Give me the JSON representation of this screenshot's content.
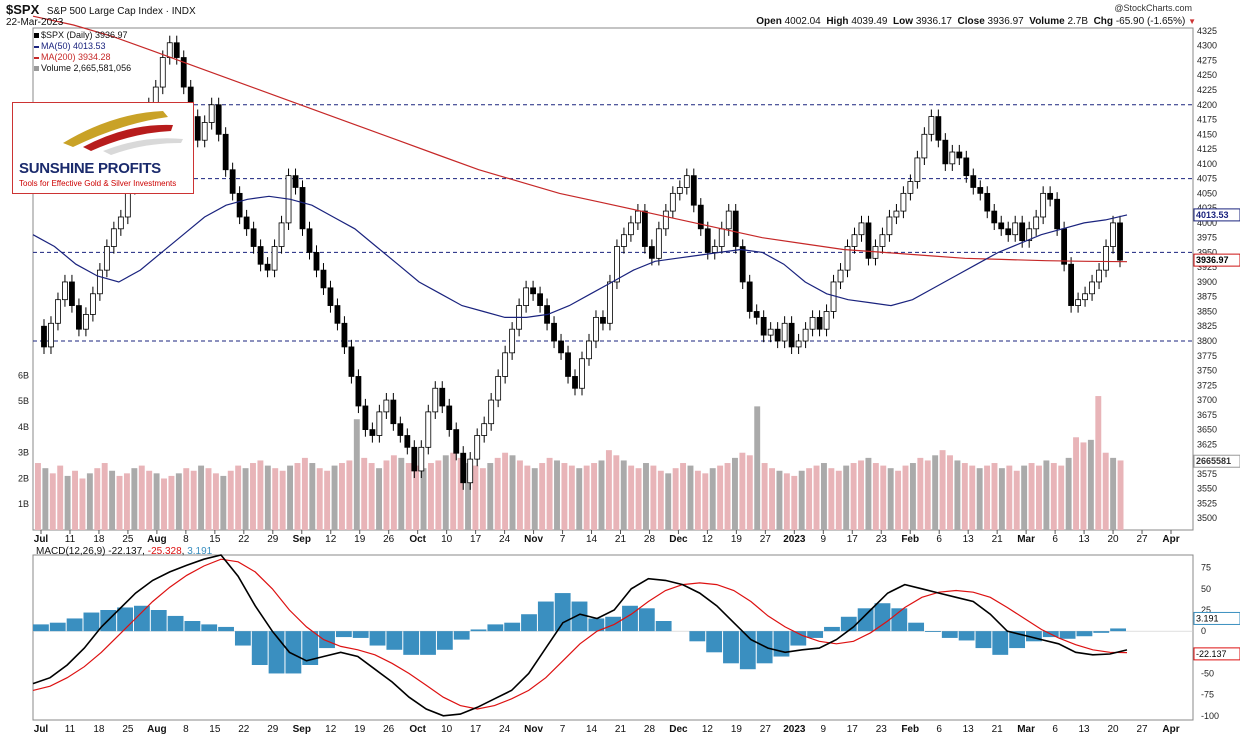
{
  "header": {
    "symbol": "$SPX",
    "name": "S&P 500 Large Cap Index",
    "exchange": "INDX",
    "date": "22-Mar-2023",
    "source": "@StockCharts.com",
    "open_label": "Open",
    "open": "4002.04",
    "high_label": "High",
    "high": "4039.49",
    "low_label": "Low",
    "low": "3936.17",
    "close_label": "Close",
    "close": "3936.97",
    "volume_label": "Volume",
    "volume": "2.7B",
    "chg_label": "Chg",
    "chg": "-65.90 (-1.65%)"
  },
  "legend": {
    "price": "$SPX (Daily) 3936.97",
    "ma50": "MA(50) 4013.53",
    "ma200": "MA(200) 3934.28",
    "volume": "Volume 2,665,581,056",
    "macd_label": "MACD(12,26,9)",
    "macd_value": "-22.137",
    "signal_value": "-25.328",
    "hist_value": "3.191"
  },
  "logo": {
    "name": "SUNSHINE PROFITS",
    "tagline": "Tools for Effective Gold & Silver Investments"
  },
  "colors": {
    "ma50": "#1a237e",
    "ma200": "#c62828",
    "vol_up": "#e8b4b8",
    "vol_down": "#aaaaaa",
    "hist": "#3a8fc0",
    "macd": "#000000",
    "signal": "#dd1111",
    "level": "#1a237e",
    "badge_close": "#cc1111"
  },
  "chart_data": {
    "type": "candlestick",
    "price_axis": {
      "min": 3480,
      "max": 4330,
      "ticks": [
        3500,
        3525,
        3550,
        3575,
        3600,
        3625,
        3650,
        3675,
        3700,
        3725,
        3750,
        3775,
        3800,
        3825,
        3850,
        3875,
        3900,
        3925,
        3950,
        3975,
        4000,
        4025,
        4050,
        4075,
        4100,
        4125,
        4150,
        4175,
        4200,
        4225,
        4250,
        4275,
        4300,
        4325
      ]
    },
    "volume_axis": {
      "ticks": [
        "1B",
        "2B",
        "3B",
        "4B",
        "5B",
        "6B"
      ]
    },
    "x_ticks": [
      "Jul",
      "11",
      "18",
      "25",
      "Aug",
      "8",
      "15",
      "22",
      "29",
      "Sep",
      "12",
      "19",
      "26",
      "Oct",
      "10",
      "17",
      "24",
      "Nov",
      "7",
      "14",
      "21",
      "28",
      "Dec",
      "12",
      "19",
      "27",
      "2023",
      "9",
      "17",
      "23",
      "Feb",
      "6",
      "13",
      "21",
      "Mar",
      "6",
      "13",
      "20",
      "27",
      "Apr"
    ],
    "x_ticks_bold": [
      "Jul",
      "Aug",
      "Sep",
      "Oct",
      "Nov",
      "Dec",
      "2023",
      "Feb",
      "Mar",
      "Apr"
    ],
    "level_lines": [
      4200,
      4075,
      3950,
      3800
    ],
    "price_badges": {
      "ma50": "4013.53",
      "close": "3936.97",
      "volume": "2665581"
    },
    "price_path": [
      3825,
      3790,
      3830,
      3870,
      3900,
      3860,
      3820,
      3845,
      3880,
      3920,
      3960,
      3990,
      4010,
      4060,
      4120,
      4150,
      4200,
      4230,
      4280,
      4305,
      4280,
      4230,
      4180,
      4140,
      4170,
      4200,
      4150,
      4090,
      4050,
      4010,
      3990,
      3960,
      3930,
      3920,
      3960,
      4000,
      4080,
      4060,
      3990,
      3950,
      3920,
      3890,
      3860,
      3830,
      3790,
      3740,
      3690,
      3650,
      3640,
      3680,
      3700,
      3660,
      3640,
      3620,
      3580,
      3620,
      3680,
      3720,
      3690,
      3650,
      3610,
      3560,
      3600,
      3640,
      3660,
      3700,
      3740,
      3780,
      3820,
      3860,
      3890,
      3880,
      3860,
      3830,
      3800,
      3780,
      3740,
      3720,
      3770,
      3800,
      3840,
      3830,
      3900,
      3960,
      3980,
      4000,
      4020,
      3960,
      3940,
      3990,
      4020,
      4050,
      4060,
      4080,
      4030,
      3990,
      3950,
      3960,
      3990,
      4020,
      3960,
      3900,
      3850,
      3840,
      3810,
      3820,
      3800,
      3830,
      3790,
      3800,
      3820,
      3840,
      3820,
      3850,
      3900,
      3920,
      3960,
      3980,
      4000,
      3940,
      3960,
      3980,
      4010,
      4020,
      4050,
      4070,
      4110,
      4150,
      4180,
      4140,
      4100,
      4120,
      4110,
      4080,
      4060,
      4050,
      4020,
      4000,
      3990,
      3980,
      4000,
      3970,
      3990,
      4010,
      4050,
      4040,
      3990,
      3930,
      3860,
      3870,
      3880,
      3900,
      3920,
      3960,
      4000,
      3936.97
    ],
    "ma50_path": [
      3980,
      3960,
      3930,
      3910,
      3900,
      3920,
      3950,
      3980,
      4010,
      4030,
      4040,
      4045,
      4040,
      4030,
      4010,
      3990,
      3960,
      3930,
      3900,
      3880,
      3860,
      3850,
      3840,
      3840,
      3845,
      3860,
      3880,
      3900,
      3920,
      3935,
      3940,
      3945,
      3950,
      3955,
      3950,
      3930,
      3900,
      3880,
      3870,
      3865,
      3860,
      3870,
      3890,
      3910,
      3930,
      3950,
      3965,
      3980,
      3990,
      4000,
      4005,
      4013.53
    ],
    "ma200_path": [
      4350,
      4335,
      4315,
      4290,
      4265,
      4240,
      4215,
      4190,
      4165,
      4140,
      4115,
      4090,
      4070,
      4050,
      4035,
      4020,
      4005,
      3990,
      3975,
      3965,
      3955,
      3950,
      3945,
      3940,
      3938,
      3936,
      3935,
      3934.28
    ],
    "volume_bars_b": [
      2.6,
      2.4,
      2.2,
      2.5,
      2.1,
      2.3,
      2.0,
      2.2,
      2.4,
      2.6,
      2.3,
      2.1,
      2.2,
      2.4,
      2.5,
      2.3,
      2.2,
      2.0,
      2.1,
      2.2,
      2.4,
      2.3,
      2.5,
      2.4,
      2.2,
      2.1,
      2.3,
      2.5,
      2.4,
      2.6,
      2.7,
      2.5,
      2.4,
      2.3,
      2.5,
      2.6,
      2.8,
      2.6,
      2.4,
      2.3,
      2.5,
      2.6,
      2.7,
      4.3,
      2.8,
      2.6,
      2.4,
      2.7,
      2.9,
      2.8,
      2.6,
      2.5,
      2.4,
      2.6,
      2.7,
      2.9,
      3.0,
      2.8,
      2.6,
      2.5,
      2.4,
      2.6,
      2.8,
      3.0,
      2.9,
      2.7,
      2.5,
      2.4,
      2.6,
      2.8,
      2.7,
      2.6,
      2.5,
      2.4,
      2.5,
      2.6,
      2.7,
      3.1,
      2.9,
      2.7,
      2.5,
      2.4,
      2.6,
      2.5,
      2.3,
      2.2,
      2.4,
      2.6,
      2.5,
      2.3,
      2.2,
      2.4,
      2.5,
      2.6,
      2.8,
      3.0,
      2.9,
      4.8,
      2.6,
      2.4,
      2.3,
      2.2,
      2.1,
      2.3,
      2.4,
      2.5,
      2.6,
      2.4,
      2.3,
      2.5,
      2.6,
      2.7,
      2.8,
      2.6,
      2.5,
      2.4,
      2.3,
      2.5,
      2.6,
      2.8,
      2.7,
      2.9,
      3.1,
      2.9,
      2.7,
      2.6,
      2.5,
      2.4,
      2.5,
      2.6,
      2.4,
      2.5,
      2.3,
      2.5,
      2.6,
      2.5,
      2.7,
      2.6,
      2.5,
      2.8,
      3.6,
      3.4,
      3.5,
      5.2,
      3.0,
      2.8,
      2.7
    ],
    "macd_axis": {
      "min": -105,
      "max": 90,
      "ticks": [
        75,
        50,
        25,
        0,
        -25,
        -50,
        -75,
        -100
      ]
    },
    "macd_badges": {
      "hist": "3.191",
      "macd": "-22.137"
    },
    "macd_path": [
      -62,
      -55,
      -40,
      -20,
      5,
      25,
      45,
      60,
      70,
      78,
      85,
      90,
      65,
      30,
      0,
      -25,
      -35,
      -30,
      -25,
      -30,
      -45,
      -60,
      -78,
      -92,
      -100,
      -98,
      -90,
      -80,
      -70,
      -50,
      -20,
      10,
      20,
      15,
      25,
      50,
      62,
      60,
      55,
      45,
      30,
      10,
      -10,
      -20,
      -25,
      -22,
      -20,
      -10,
      5,
      25,
      45,
      55,
      50,
      45,
      40,
      35,
      20,
      0,
      -5,
      -10,
      -15,
      -25,
      -28,
      -27,
      -22.137
    ],
    "signal_path": [
      -70,
      -65,
      -55,
      -42,
      -25,
      -5,
      15,
      35,
      52,
      66,
      77,
      85,
      82,
      70,
      50,
      25,
      5,
      -10,
      -18,
      -22,
      -28,
      -38,
      -50,
      -64,
      -78,
      -88,
      -92,
      -88,
      -80,
      -70,
      -55,
      -35,
      -15,
      0,
      8,
      20,
      35,
      48,
      55,
      57,
      55,
      48,
      35,
      18,
      5,
      -5,
      -12,
      -15,
      -12,
      -2,
      12,
      28,
      40,
      46,
      48,
      46,
      40,
      28,
      15,
      2,
      -8,
      -16,
      -22,
      -25,
      -25.328
    ],
    "hist_path": [
      8,
      10,
      15,
      22,
      25,
      28,
      30,
      25,
      18,
      12,
      8,
      5,
      -17,
      -40,
      -50,
      -50,
      -40,
      -20,
      -7,
      -8,
      -17,
      -22,
      -28,
      -28,
      -22,
      -10,
      2,
      8,
      10,
      20,
      35,
      45,
      35,
      15,
      17,
      30,
      27,
      12,
      0,
      -12,
      -25,
      -38,
      -45,
      -38,
      -30,
      -17,
      -8,
      5,
      17,
      27,
      33,
      27,
      10,
      -1,
      -8,
      -11,
      -20,
      -28,
      -20,
      -12,
      -7,
      -9,
      -6,
      -2,
      3.191
    ]
  }
}
